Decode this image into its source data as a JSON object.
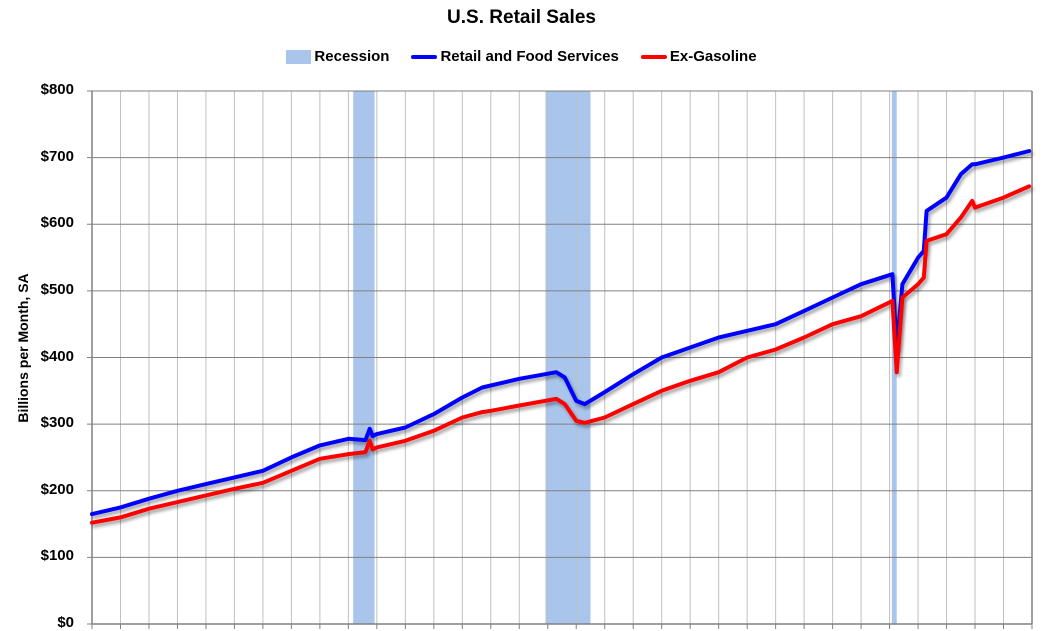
{
  "chart_data": {
    "type": "line",
    "title": "U.S. Retail Sales",
    "xlabel": "",
    "ylabel": "Billions per Month, SA",
    "ylim": [
      0,
      800
    ],
    "xlim": [
      1992.0,
      2025.0
    ],
    "yticks": [
      "$0",
      "$100",
      "$200",
      "$300",
      "$400",
      "$500",
      "$600",
      "$700",
      "$800"
    ],
    "ytick_values": [
      0,
      100,
      200,
      300,
      400,
      500,
      600,
      700,
      800
    ],
    "grid": true,
    "legend_position": "top",
    "legend": [
      "Recession",
      "Retail and Food Services",
      "Ex-Gasoline"
    ],
    "recessions": [
      {
        "start": 2001.17,
        "end": 2001.92
      },
      {
        "start": 2007.92,
        "end": 2009.5
      },
      {
        "start": 2020.08,
        "end": 2020.25
      }
    ],
    "x": [
      1992.0,
      1993.0,
      1994.0,
      1995.0,
      1996.0,
      1997.0,
      1998.0,
      1999.0,
      2000.0,
      2001.0,
      2001.6,
      2001.75,
      2001.85,
      2002.0,
      2003.0,
      2004.0,
      2005.0,
      2005.7,
      2006.0,
      2007.0,
      2008.3,
      2008.6,
      2009.0,
      2009.3,
      2010.0,
      2011.0,
      2012.0,
      2013.0,
      2014.0,
      2015.0,
      2016.0,
      2017.0,
      2018.0,
      2019.0,
      2020.1,
      2020.25,
      2020.45,
      2021.0,
      2021.2,
      2021.3,
      2022.0,
      2022.5,
      2022.9,
      2023.0,
      2024.0,
      2024.9
    ],
    "series": [
      {
        "name": "Retail and Food Services",
        "color": "#0000ff",
        "values": [
          165,
          175,
          188,
          200,
          210,
          220,
          230,
          250,
          268,
          278,
          276,
          293,
          282,
          285,
          295,
          315,
          340,
          355,
          358,
          368,
          378,
          370,
          335,
          330,
          348,
          375,
          400,
          415,
          430,
          440,
          450,
          470,
          490,
          510,
          525,
          413,
          510,
          550,
          560,
          620,
          640,
          675,
          690,
          690,
          700,
          710
        ]
      },
      {
        "name": "Ex-Gasoline",
        "color": "#ff0000",
        "values": [
          152,
          160,
          173,
          183,
          193,
          203,
          212,
          230,
          248,
          255,
          258,
          275,
          262,
          265,
          275,
          290,
          310,
          318,
          320,
          328,
          338,
          330,
          305,
          302,
          310,
          330,
          350,
          365,
          378,
          400,
          412,
          430,
          450,
          462,
          485,
          378,
          490,
          510,
          520,
          575,
          585,
          610,
          635,
          625,
          640,
          657
        ]
      }
    ]
  },
  "colors": {
    "recession": "#a9c5eb",
    "retail": "#0000ff",
    "ex_gasoline": "#ff0000",
    "grid": "#bfbfbf",
    "axis": "#808080"
  }
}
